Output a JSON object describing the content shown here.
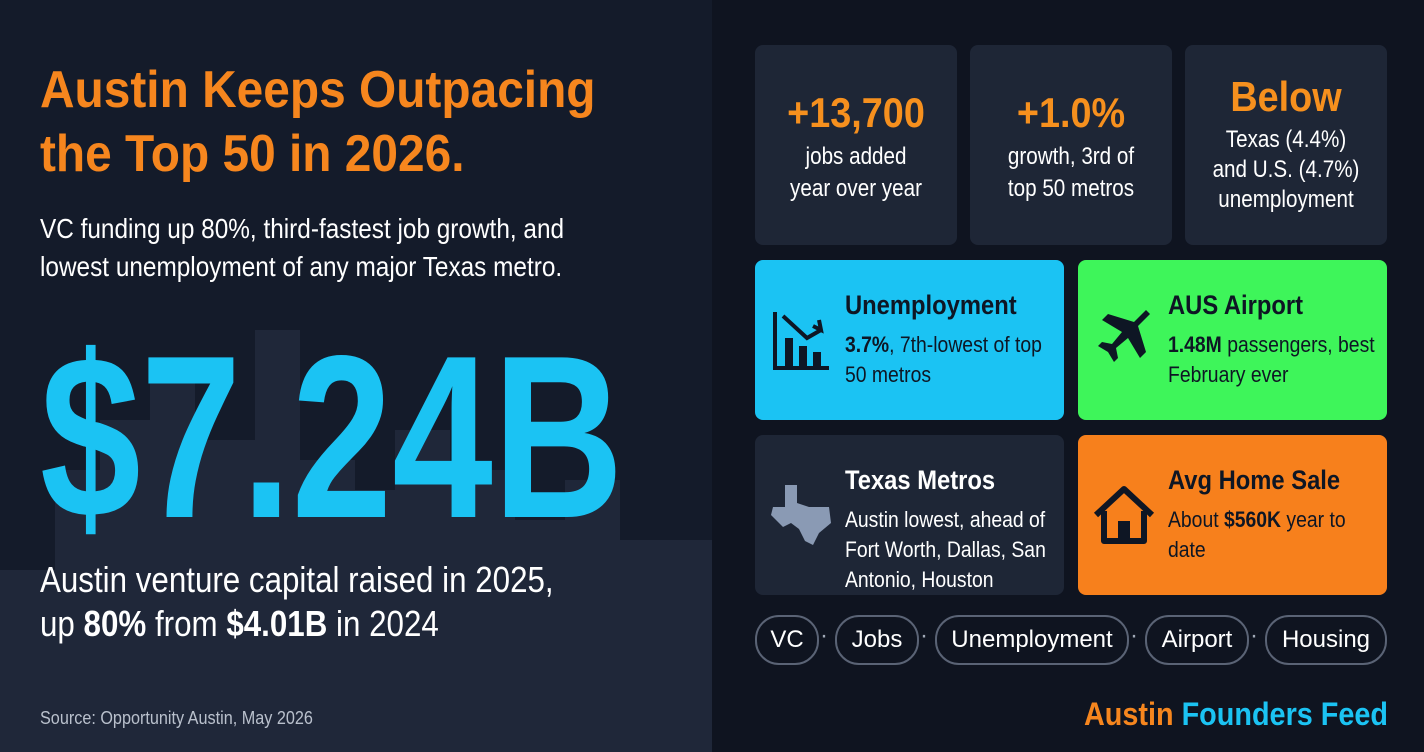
{
  "header": {
    "title_lines": [
      "Austin Keeps Outpacing",
      "the Top 50 in 2026."
    ],
    "subtitle_lines": [
      "VC funding up 80%, third-fastest job growth, and",
      "lowest unemployment of any major Texas metro."
    ]
  },
  "hero": {
    "value": "$7.24B",
    "caption": [
      "Austin venture capital raised in 2025,",
      "up",
      "80%",
      "from",
      "$4.01B",
      "in 2024"
    ]
  },
  "source": "Source: Opportunity Austin, May 2026",
  "stats": [
    {
      "value": "+13,700",
      "label_lines": [
        "jobs added",
        "year over year"
      ]
    },
    {
      "value": "+1.0%",
      "label_lines": [
        "growth, 3rd of",
        "top 50 metros"
      ]
    },
    {
      "value": "Below",
      "label_lines": [
        "Texas (4.4%)",
        "and U.S. (4.7%)",
        "unemployment"
      ]
    }
  ],
  "cards": [
    {
      "title": "Unemployment",
      "bold": "3.7%",
      "text": ", 7th-lowest of top 50 metros"
    },
    {
      "title": "AUS Airport",
      "bold": "1.48M",
      "text": " passengers, best February ever"
    },
    {
      "title": "Texas Metros",
      "bold": "",
      "text": "Austin lowest, ahead of Fort Worth, Dallas, San Antonio, Houston"
    },
    {
      "title": "Avg Home Sale",
      "bold": "$560K",
      "pre": "About ",
      "text": " year to date"
    }
  ],
  "tags": [
    "VC",
    "Jobs",
    "Unemployment",
    "Airport",
    "Housing"
  ],
  "brand": {
    "first": "Austin",
    "second": "Founders Feed"
  }
}
